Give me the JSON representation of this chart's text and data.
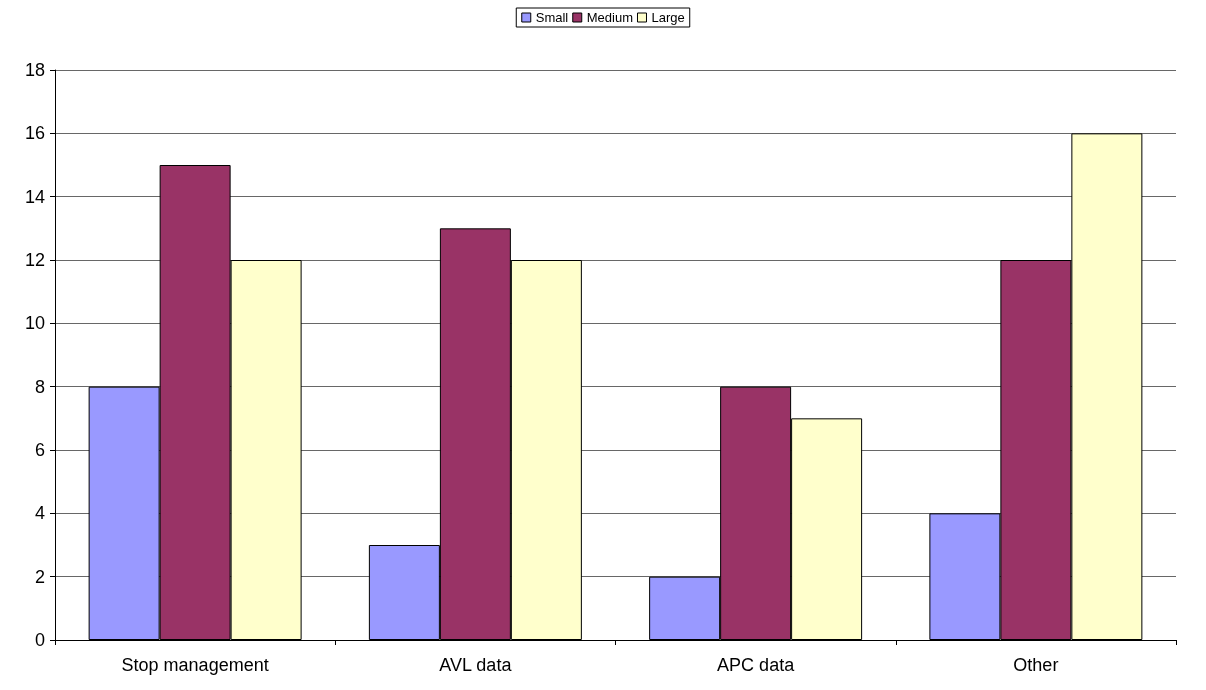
{
  "chart_data": {
    "type": "bar",
    "categories": [
      "Stop management",
      "AVL data",
      "APC data",
      "Other"
    ],
    "series": [
      {
        "name": "Small",
        "color": "#9999ff",
        "values": [
          8,
          3,
          2,
          4
        ]
      },
      {
        "name": "Medium",
        "color": "#993366",
        "values": [
          15,
          13,
          8,
          12
        ]
      },
      {
        "name": "Large",
        "color": "#ffffcc",
        "values": [
          12,
          12,
          7,
          16
        ]
      }
    ],
    "ylim": [
      0,
      18
    ],
    "yticks": [
      0,
      2,
      4,
      6,
      8,
      10,
      12,
      14,
      16,
      18
    ],
    "grid": "y",
    "legend": "top"
  }
}
